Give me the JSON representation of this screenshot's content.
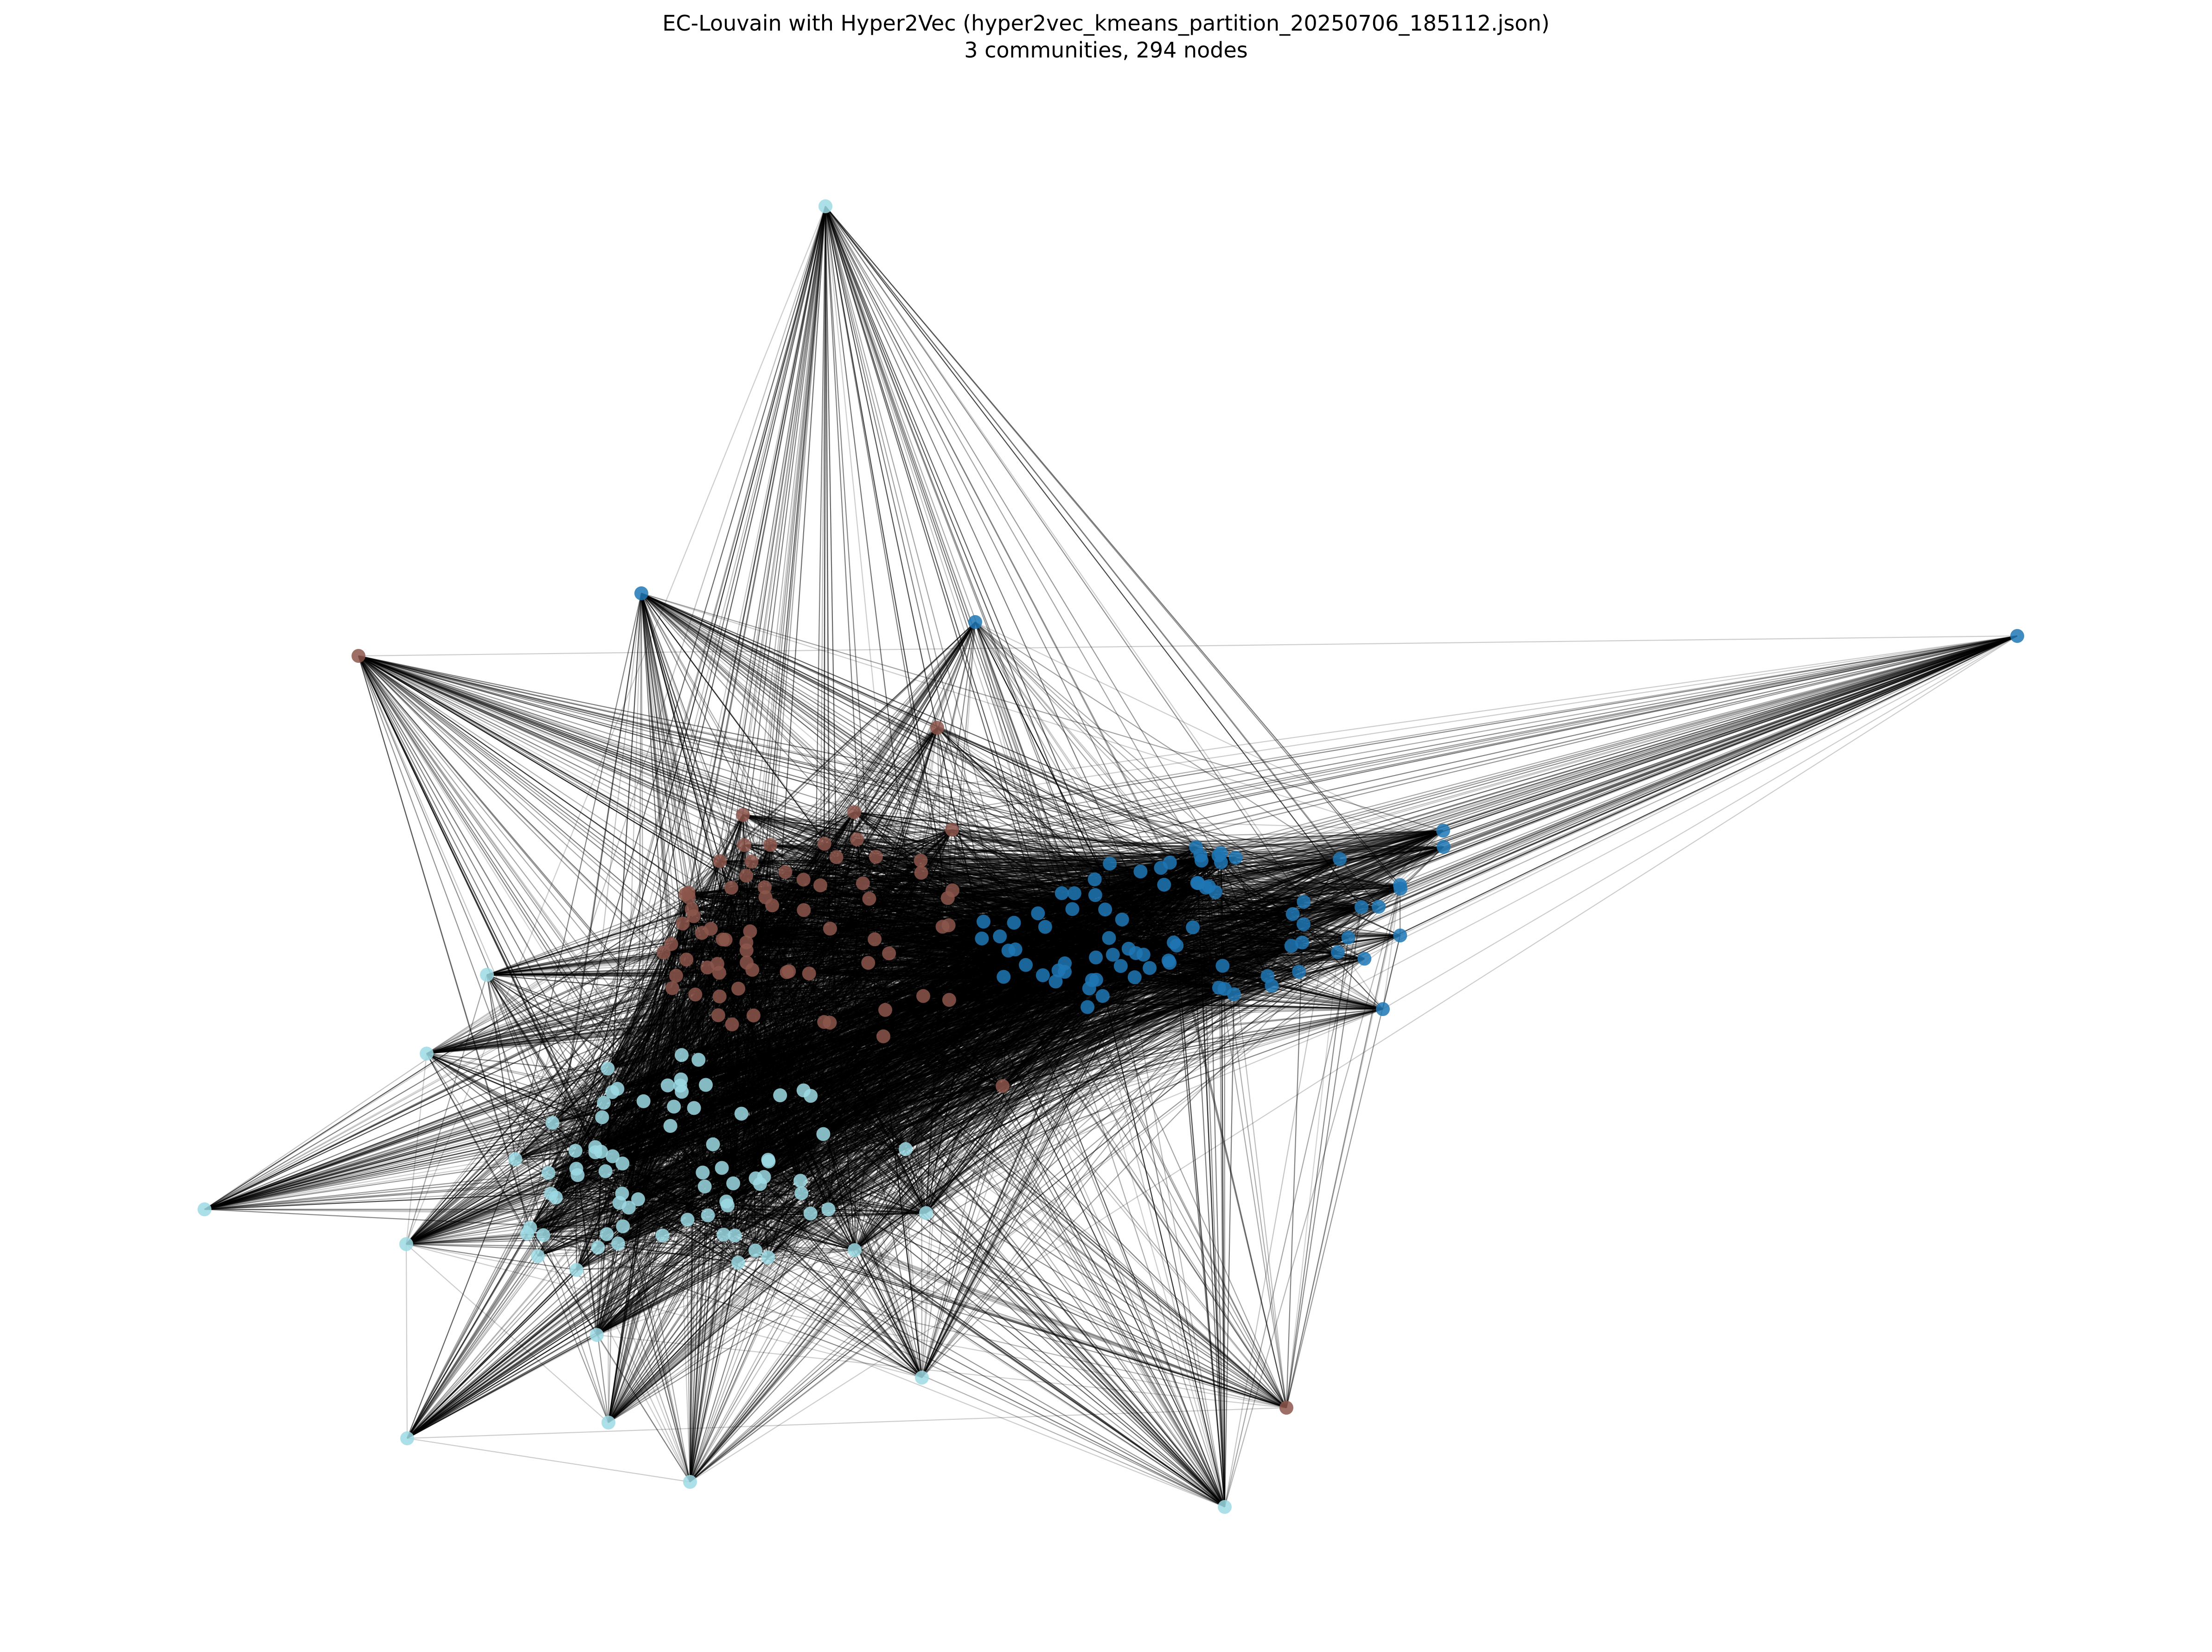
{
  "figure": {
    "title_line1": "EC-Louvain with Hyper2Vec (hyper2vec_kmeans_partition_20250706_185112.json)",
    "title_line2": "3 communities, 294 nodes",
    "background": "#ffffff"
  },
  "graph": {
    "community_count": 3,
    "node_count": 294,
    "edge_color": "#000000",
    "communities": [
      {
        "id": "A",
        "color": "#8c564b"
      },
      {
        "id": "B",
        "color": "#1f77b4"
      },
      {
        "id": "C",
        "color": "#9edae5"
      }
    ]
  }
}
